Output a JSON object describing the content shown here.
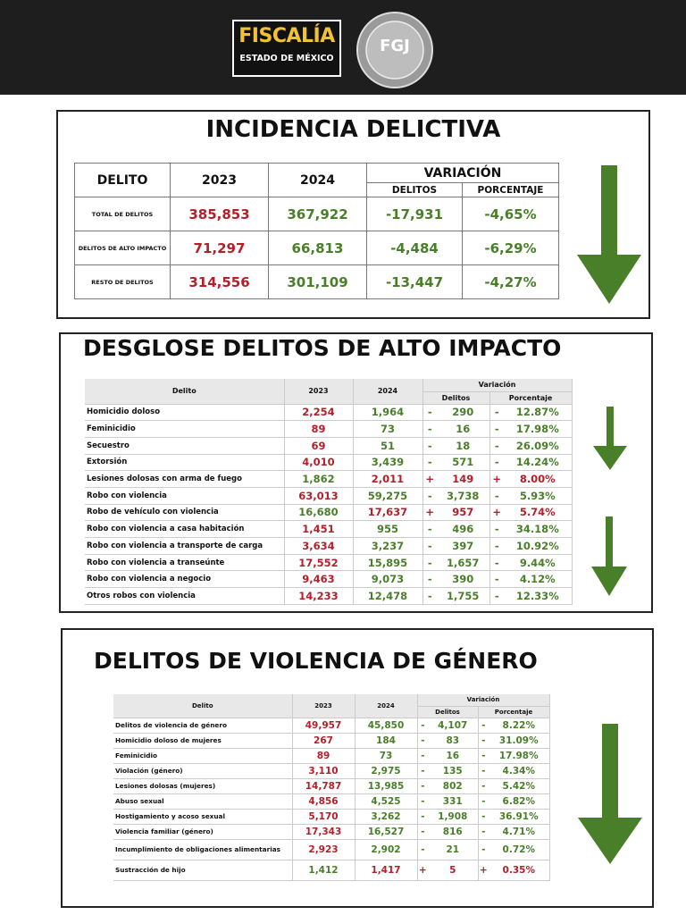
{
  "header": {
    "logo_title": "FISCALÍA",
    "logo_subtitle": "ESTADO DE MÉXICO",
    "seal": "FGJ"
  },
  "sections": [
    {
      "title": "INCIDENCIA DELICTIVA",
      "head": [
        "DELITO",
        "2023",
        "2024",
        "VARIACIÓN"
      ],
      "subhead": [
        "DELITOS",
        "PORCENTAJE"
      ],
      "rows": [
        [
          "TOTAL DE DELITOS",
          "385,853",
          "367,922",
          "-17,931",
          "-4,65%"
        ],
        [
          "DELITOS DE ALTO IMPACTO",
          "71,297",
          "66,813",
          "-4,484",
          "-6,29%"
        ],
        [
          "RESTO DE DELITOS",
          "314,556",
          "301,109",
          "-13,447",
          "-4,27%"
        ]
      ]
    },
    {
      "title": "DESGLOSE DELITOS DE ALTO IMPACTO",
      "head": [
        "Delito",
        "2023",
        "2024",
        "Variación"
      ],
      "subhead": [
        "Delitos",
        "Porcentaje"
      ],
      "rows": [
        [
          "Homicidio doloso",
          "2,254",
          "1,964",
          "-",
          "290",
          "-",
          "12.87%"
        ],
        [
          "Feminicidio",
          "89",
          "73",
          "-",
          "16",
          "-",
          "17.98%"
        ],
        [
          "Secuestro",
          "69",
          "51",
          "-",
          "18",
          "-",
          "26.09%"
        ],
        [
          "Extorsión",
          "4,010",
          "3,439",
          "-",
          "571",
          "-",
          "14.24%"
        ],
        [
          "Lesiones dolosas con arma de fuego",
          "1,862",
          "2,011",
          "+",
          "149",
          "+",
          "8.00%"
        ],
        [
          "Robo con violencia",
          "63,013",
          "59,275",
          "-",
          "3,738",
          "-",
          "5.93%"
        ],
        [
          "Robo de vehículo con violencia",
          "16,680",
          "17,637",
          "+",
          "957",
          "+",
          "5.74%"
        ],
        [
          "Robo con violencia a casa habitación",
          "1,451",
          "955",
          "-",
          "496",
          "-",
          "34.18%"
        ],
        [
          "Robo con violencia a transporte de carga",
          "3,634",
          "3,237",
          "-",
          "397",
          "-",
          "10.92%"
        ],
        [
          "Robo con violencia a transeúnte",
          "17,552",
          "15,895",
          "-",
          "1,657",
          "-",
          "9.44%"
        ],
        [
          "Robo con violencia a negocio",
          "9,463",
          "9,073",
          "-",
          "390",
          "-",
          "4.12%"
        ],
        [
          "Otros robos con violencia",
          "14,233",
          "12,478",
          "-",
          "1,755",
          "-",
          "12.33%"
        ]
      ]
    },
    {
      "title": "DELITOS DE VIOLENCIA DE GÉNERO",
      "head": [
        "Delito",
        "2023",
        "2024",
        "Variación"
      ],
      "subhead": [
        "Delitos",
        "Porcentaje"
      ],
      "rows": [
        [
          "Delitos de violencia de género",
          "49,957",
          "45,850",
          "-",
          "4,107",
          "-",
          "8.22%"
        ],
        [
          "Homicidio doloso de mujeres",
          "267",
          "184",
          "-",
          "83",
          "-",
          "31.09%"
        ],
        [
          "Feminicidio",
          "89",
          "73",
          "-",
          "16",
          "-",
          "17.98%"
        ],
        [
          "Violación (género)",
          "3,110",
          "2,975",
          "-",
          "135",
          "-",
          "4.34%"
        ],
        [
          "Lesiones dolosas (mujeres)",
          "14,787",
          "13,985",
          "-",
          "802",
          "-",
          "5.42%"
        ],
        [
          "Abuso sexual",
          "4,856",
          "4,525",
          "-",
          "331",
          "-",
          "6.82%"
        ],
        [
          "Hostigamiento y acoso sexual",
          "5,170",
          "3,262",
          "-",
          "1,908",
          "-",
          "36.91%"
        ],
        [
          "Violencia familiar (género)",
          "17,343",
          "16,527",
          "-",
          "816",
          "-",
          "4.71%"
        ],
        [
          "Incumplimiento de obligaciones alimentarias",
          "2,923",
          "2,902",
          "-",
          "21",
          "-",
          "0.72%"
        ],
        [
          "Sustracción de hijo",
          "1,412",
          "1,417",
          "+",
          "5",
          "+",
          "0.35%"
        ]
      ]
    }
  ]
}
